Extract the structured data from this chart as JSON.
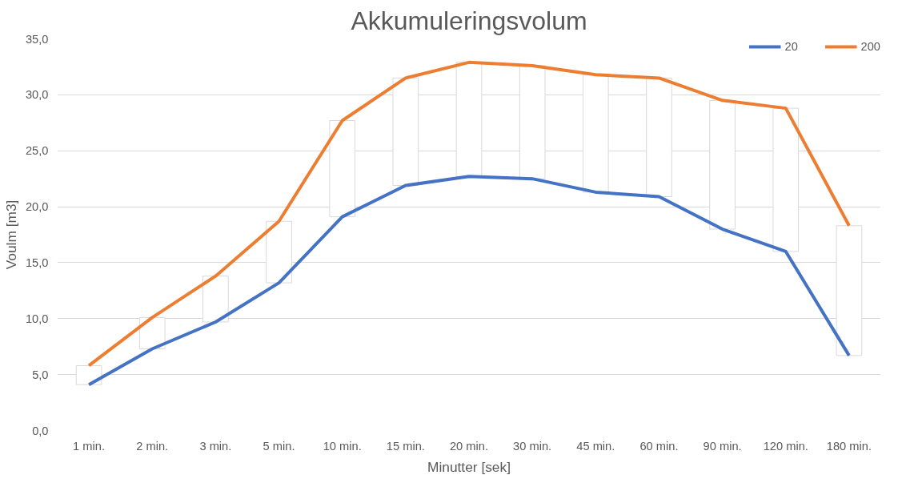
{
  "chart_data": {
    "type": "line",
    "title": "Akkumuleringsvolum",
    "xlabel": "Minutter [sek]",
    "ylabel": "Voulm [m3]",
    "categories": [
      "1 min.",
      "2 min.",
      "3 min.",
      "5 min.",
      "10 min.",
      "15 min.",
      "20 min.",
      "30 min.",
      "45 min.",
      "60 min.",
      "90 min.",
      "120 min.",
      "180 min."
    ],
    "series": [
      {
        "type": "bar",
        "color": "#ffffff",
        "base": [
          4.1,
          7.3,
          9.7,
          13.2,
          19.1,
          21.9,
          22.7,
          22.5,
          21.3,
          20.9,
          18.0,
          16.0,
          6.7
        ],
        "values": [
          1.7,
          2.8,
          4.1,
          5.5,
          8.6,
          9.6,
          10.2,
          10.1,
          10.5,
          10.6,
          11.5,
          12.8,
          11.6
        ]
      },
      {
        "name": "20",
        "color": "#4472c4",
        "values": [
          4.1,
          7.3,
          9.7,
          13.2,
          19.1,
          21.9,
          22.7,
          22.5,
          21.3,
          20.9,
          18.0,
          16.0,
          6.7
        ]
      },
      {
        "name": "200",
        "color": "#ed7d31",
        "values": [
          5.8,
          10.1,
          13.8,
          18.7,
          27.7,
          31.5,
          32.9,
          32.6,
          31.8,
          31.5,
          29.5,
          28.8,
          18.3
        ]
      }
    ],
    "ylim": [
      0,
      35
    ],
    "yticks": [
      {
        "value": 0,
        "label": "0,0"
      },
      {
        "value": 5,
        "label": "5,0"
      },
      {
        "value": 10,
        "label": "10,0"
      },
      {
        "value": 15,
        "label": "15,0"
      },
      {
        "value": 20,
        "label": "20,0"
      },
      {
        "value": 25,
        "label": "25,0"
      },
      {
        "value": 30,
        "label": "30,0"
      },
      {
        "value": 35,
        "label": "35,0"
      }
    ],
    "grid": "y",
    "legend": "top right",
    "marker": "none",
    "line_style": "solid"
  }
}
